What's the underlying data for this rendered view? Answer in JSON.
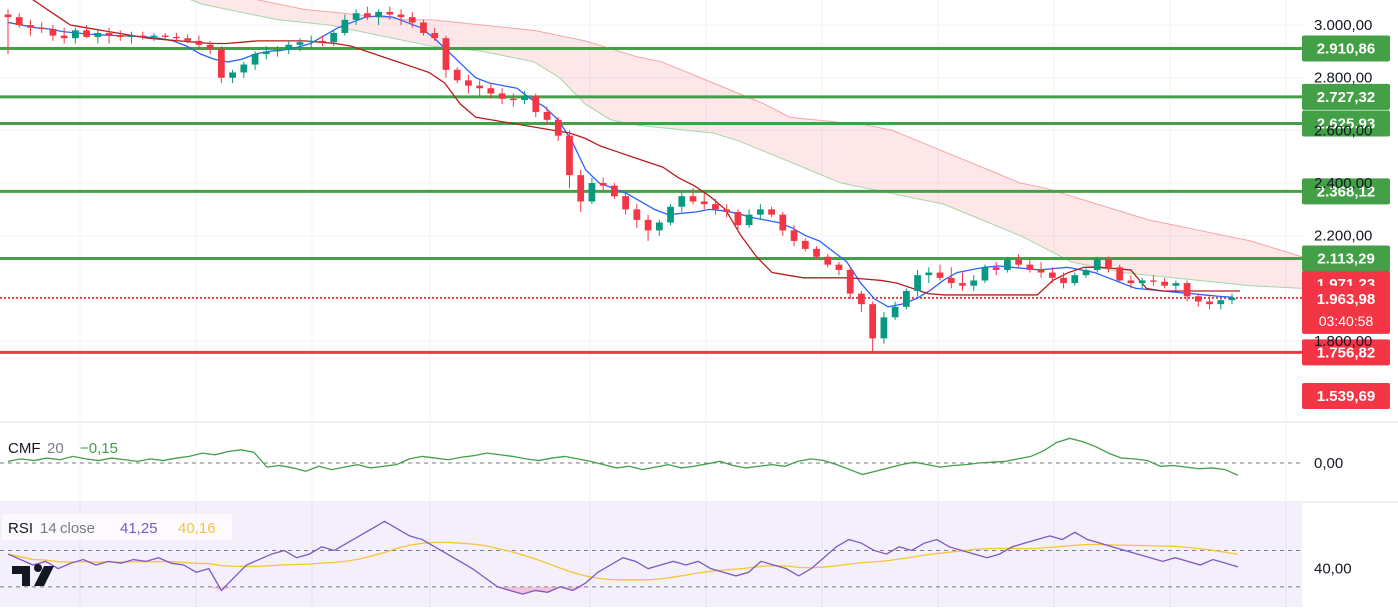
{
  "chart_data": [
    {
      "type": "candlestick",
      "panel": "price",
      "y_ticks": [
        "3.000,00",
        "2.800,00",
        "2.600,00",
        "2.400,00",
        "2.200,00",
        "1.800,00"
      ],
      "ylim": [
        1500,
        3080
      ],
      "support_levels": [
        {
          "label": "2.910,86",
          "value": 2910.86,
          "color": "#43a047"
        },
        {
          "label": "2.727,32",
          "value": 2727.32,
          "color": "#43a047"
        },
        {
          "label": "2.625,93",
          "value": 2625.93,
          "color": "#43a047"
        },
        {
          "label": "2.368,12",
          "value": 2368.12,
          "color": "#43a047"
        },
        {
          "label": "2.113,29",
          "value": 2113.29,
          "color": "#43a047"
        },
        {
          "label": "1.756,82",
          "value": 1756.82,
          "color": "#f23645"
        },
        {
          "label": "1.539,69",
          "value": 1539.69,
          "color": "#f23645"
        }
      ],
      "current_price": {
        "label": "1.963,98",
        "value": 1963.98,
        "countdown": "03:40:58",
        "color": "#f23645"
      },
      "kijun_price": {
        "label": "1.971,23",
        "value": 1971.23,
        "color": "#f23645"
      },
      "candles": [
        [
          3040,
          3060,
          2890,
          3030
        ],
        [
          3030,
          3045,
          2990,
          3000
        ],
        [
          3000,
          3020,
          2960,
          2990
        ],
        [
          2990,
          3010,
          2970,
          2985
        ],
        [
          2985,
          3000,
          2940,
          2960
        ],
        [
          2960,
          2990,
          2930,
          2950
        ],
        [
          2950,
          2990,
          2930,
          2980
        ],
        [
          2980,
          3000,
          2950,
          2955
        ],
        [
          2955,
          2980,
          2930,
          2970
        ],
        [
          2970,
          2990,
          2930,
          2960
        ],
        [
          2960,
          2980,
          2940,
          2955
        ],
        [
          2955,
          2975,
          2930,
          2960
        ],
        [
          2960,
          2975,
          2945,
          2955
        ],
        [
          2955,
          2970,
          2940,
          2960
        ],
        [
          2960,
          2970,
          2945,
          2955
        ],
        [
          2955,
          2970,
          2935,
          2950
        ],
        [
          2950,
          2965,
          2930,
          2940
        ],
        [
          2940,
          2960,
          2910,
          2925
        ],
        [
          2925,
          2940,
          2890,
          2910
        ],
        [
          2910,
          2920,
          2780,
          2800
        ],
        [
          2800,
          2830,
          2780,
          2820
        ],
        [
          2820,
          2860,
          2800,
          2850
        ],
        [
          2850,
          2900,
          2830,
          2890
        ],
        [
          2890,
          2920,
          2870,
          2900
        ],
        [
          2900,
          2920,
          2880,
          2905
        ],
        [
          2905,
          2940,
          2890,
          2925
        ],
        [
          2925,
          2950,
          2900,
          2935
        ],
        [
          2935,
          2960,
          2910,
          2940
        ],
        [
          2940,
          2960,
          2920,
          2935
        ],
        [
          2935,
          2980,
          2920,
          2970
        ],
        [
          2970,
          3040,
          2960,
          3020
        ],
        [
          3020,
          3060,
          3000,
          3045
        ],
        [
          3045,
          3070,
          3020,
          3030
        ],
        [
          3030,
          3060,
          3000,
          3050
        ],
        [
          3050,
          3070,
          3020,
          3040
        ],
        [
          3040,
          3060,
          3000,
          3030
        ],
        [
          3030,
          3050,
          2990,
          3010
        ],
        [
          3010,
          3020,
          2960,
          2970
        ],
        [
          2970,
          2990,
          2940,
          2950
        ],
        [
          2950,
          2960,
          2800,
          2830
        ],
        [
          2830,
          2840,
          2780,
          2790
        ],
        [
          2790,
          2810,
          2740,
          2770
        ],
        [
          2770,
          2790,
          2730,
          2760
        ],
        [
          2760,
          2780,
          2720,
          2740
        ],
        [
          2740,
          2760,
          2700,
          2720
        ],
        [
          2720,
          2740,
          2690,
          2715
        ],
        [
          2715,
          2750,
          2700,
          2730
        ],
        [
          2730,
          2740,
          2650,
          2670
        ],
        [
          2670,
          2690,
          2620,
          2640
        ],
        [
          2640,
          2650,
          2560,
          2580
        ],
        [
          2580,
          2600,
          2380,
          2430
        ],
        [
          2430,
          2450,
          2290,
          2330
        ],
        [
          2330,
          2420,
          2320,
          2400
        ],
        [
          2400,
          2420,
          2370,
          2390
        ],
        [
          2390,
          2400,
          2340,
          2350
        ],
        [
          2350,
          2360,
          2280,
          2300
        ],
        [
          2300,
          2320,
          2230,
          2260
        ],
        [
          2260,
          2280,
          2180,
          2220
        ],
        [
          2220,
          2260,
          2200,
          2250
        ],
        [
          2250,
          2320,
          2240,
          2310
        ],
        [
          2310,
          2370,
          2290,
          2350
        ],
        [
          2350,
          2380,
          2320,
          2330
        ],
        [
          2330,
          2360,
          2300,
          2320
        ],
        [
          2320,
          2340,
          2280,
          2300
        ],
        [
          2300,
          2320,
          2270,
          2290
        ],
        [
          2290,
          2300,
          2220,
          2240
        ],
        [
          2240,
          2300,
          2230,
          2280
        ],
        [
          2280,
          2320,
          2260,
          2300
        ],
        [
          2300,
          2310,
          2270,
          2280
        ],
        [
          2280,
          2290,
          2200,
          2220
        ],
        [
          2220,
          2240,
          2160,
          2180
        ],
        [
          2180,
          2190,
          2140,
          2150
        ],
        [
          2150,
          2160,
          2110,
          2120
        ],
        [
          2120,
          2130,
          2080,
          2090
        ],
        [
          2090,
          2100,
          2050,
          2070
        ],
        [
          2070,
          2080,
          1960,
          1980
        ],
        [
          1980,
          1990,
          1910,
          1940
        ],
        [
          1940,
          1950,
          1760,
          1810
        ],
        [
          1810,
          1910,
          1790,
          1890
        ],
        [
          1890,
          1950,
          1880,
          1930
        ],
        [
          1930,
          2000,
          1920,
          1990
        ],
        [
          1990,
          2070,
          1970,
          2050
        ],
        [
          2050,
          2080,
          2020,
          2060
        ],
        [
          2060,
          2090,
          2030,
          2040
        ],
        [
          2040,
          2080,
          2000,
          2020
        ],
        [
          2020,
          2060,
          1990,
          2010
        ],
        [
          2010,
          2050,
          1990,
          2030
        ],
        [
          2030,
          2090,
          2020,
          2080
        ],
        [
          2080,
          2100,
          2050,
          2070
        ],
        [
          2070,
          2120,
          2060,
          2110
        ],
        [
          2110,
          2130,
          2080,
          2090
        ],
        [
          2090,
          2110,
          2060,
          2070
        ],
        [
          2070,
          2100,
          2040,
          2060
        ],
        [
          2060,
          2080,
          2020,
          2040
        ],
        [
          2040,
          2060,
          2000,
          2020
        ],
        [
          2020,
          2060,
          2010,
          2050
        ],
        [
          2050,
          2080,
          2040,
          2070
        ],
        [
          2070,
          2120,
          2060,
          2110
        ],
        [
          2110,
          2120,
          2060,
          2080
        ],
        [
          2080,
          2090,
          2020,
          2030
        ],
        [
          2030,
          2050,
          2000,
          2020
        ],
        [
          2020,
          2040,
          2000,
          2030
        ],
        [
          2030,
          2050,
          2010,
          2025
        ],
        [
          2025,
          2040,
          2000,
          2010
        ],
        [
          2010,
          2030,
          1990,
          2020
        ],
        [
          2020,
          2030,
          1950,
          1970
        ],
        [
          1970,
          1980,
          1930,
          1950
        ],
        [
          1950,
          1970,
          1920,
          1940
        ],
        [
          1940,
          1960,
          1920,
          1955
        ],
        [
          1955,
          1980,
          1940,
          1964
        ]
      ],
      "tenkan": [
        3010,
        3000,
        2990,
        2985,
        2975,
        2970,
        2965,
        2962,
        2960,
        2958,
        2955,
        2950,
        2940,
        2920,
        2890,
        2870,
        2860,
        2870,
        2890,
        2900,
        2905,
        2915,
        2930,
        2960,
        2990,
        3010,
        3030,
        3035,
        3030,
        3010,
        2990,
        2950,
        2900,
        2850,
        2800,
        2780,
        2770,
        2760,
        2720,
        2690,
        2640,
        2560,
        2450,
        2400,
        2380,
        2360,
        2330,
        2300,
        2280,
        2285,
        2290,
        2300,
        2295,
        2285,
        2270,
        2260,
        2250,
        2230,
        2200,
        2180,
        2140,
        2100,
        2020,
        1960,
        1930,
        1940,
        1960,
        1990,
        2030,
        2060,
        2070,
        2080,
        2085,
        2080,
        2075,
        2070,
        2075,
        2080,
        2070,
        2060,
        2040,
        2020,
        2000,
        1995,
        1990,
        1985,
        1980,
        1975,
        1970,
        1966
      ],
      "kijun": [
        3150,
        3120,
        3080,
        3040,
        3000,
        2990,
        2980,
        2970,
        2960,
        2950,
        2945,
        2940,
        2935,
        2930,
        2930,
        2935,
        2940,
        2940,
        2940,
        2940,
        2935,
        2930,
        2920,
        2900,
        2880,
        2860,
        2840,
        2820,
        2780,
        2700,
        2650,
        2640,
        2630,
        2620,
        2610,
        2600,
        2590,
        2570,
        2540,
        2520,
        2500,
        2480,
        2460,
        2420,
        2390,
        2350,
        2300,
        2200,
        2120,
        2060,
        2050,
        2040,
        2040,
        2040,
        2040,
        2035,
        2030,
        2020,
        2000,
        1980,
        1975,
        1975,
        1975,
        1975,
        1975,
        1975,
        1975,
        2030,
        2060,
        2080,
        2080,
        2075,
        2070,
        2000,
        1990,
        1990,
        1990,
        1990,
        1990,
        1990
      ],
      "cloud_top": [
        3200,
        3180,
        3150,
        3120,
        3100,
        3080,
        3060,
        3050,
        3040,
        3030,
        3020,
        3020,
        3010,
        3000,
        2990,
        2980,
        2960,
        2940,
        2910,
        2880,
        2860,
        2820,
        2780,
        2740,
        2700,
        2650,
        2640,
        2630,
        2620,
        2600,
        2560,
        2520,
        2480,
        2440,
        2400,
        2380,
        2350,
        2320,
        2290,
        2260,
        2240,
        2220,
        2200,
        2180,
        2150,
        2120
      ],
      "cloud_bottom": [
        3150,
        3120,
        3080,
        3060,
        3040,
        3020,
        3010,
        3000,
        2980,
        2960,
        2940,
        2920,
        2910,
        2900,
        2880,
        2860,
        2800,
        2700,
        2640,
        2620,
        2610,
        2600,
        2590,
        2560,
        2520,
        2480,
        2440,
        2400,
        2380,
        2360,
        2340,
        2320,
        2280,
        2240,
        2200,
        2150,
        2100,
        2080,
        2060,
        2050,
        2040,
        2030,
        2020,
        2010,
        2005,
        2000
      ]
    },
    {
      "type": "line",
      "panel": "cmf",
      "indicator": "CMF",
      "period": "20",
      "value_label": "−0,15",
      "y_ticks": [
        "0,00"
      ],
      "ylim": [
        -0.45,
        0.45
      ],
      "values": [
        0.02,
        0.05,
        0.03,
        0.06,
        0.04,
        0.08,
        0.05,
        0.03,
        0.06,
        0.04,
        0.02,
        0.05,
        0.03,
        0.06,
        0.08,
        0.12,
        0.1,
        0.14,
        0.16,
        0.13,
        -0.05,
        -0.03,
        -0.06,
        -0.1,
        -0.04,
        -0.08,
        -0.05,
        -0.02,
        -0.06,
        -0.04,
        -0.02,
        0.05,
        0.08,
        0.06,
        0.04,
        0.07,
        0.09,
        0.12,
        0.1,
        0.08,
        0.05,
        0.03,
        0.06,
        0.08,
        0.05,
        0.02,
        -0.02,
        -0.06,
        -0.04,
        -0.08,
        -0.05,
        -0.02,
        -0.06,
        -0.04,
        -0.01,
        0.02,
        -0.03,
        -0.06,
        -0.04,
        -0.02,
        -0.04,
        0.02,
        0.05,
        0.03,
        -0.02,
        -0.08,
        -0.14,
        -0.1,
        -0.06,
        -0.02,
        0.01,
        -0.02,
        -0.05,
        -0.03,
        -0.02,
        0.0,
        0.01,
        0.02,
        0.05,
        0.08,
        0.15,
        0.25,
        0.3,
        0.26,
        0.2,
        0.12,
        0.06,
        0.05,
        0.03,
        -0.04,
        -0.03,
        -0.05,
        -0.07,
        -0.06,
        -0.08,
        -0.15
      ]
    },
    {
      "type": "line",
      "panel": "rsi",
      "indicator": "RSI",
      "period": "14",
      "source": "close",
      "value_label": "41,25",
      "ma_label": "40,16",
      "y_ticks": [
        "40,00"
      ],
      "ylim": [
        20,
        75
      ],
      "bands": [
        30,
        50
      ],
      "rsi": [
        48,
        45,
        42,
        44,
        40,
        43,
        45,
        42,
        44,
        43,
        45,
        44,
        46,
        43,
        42,
        38,
        40,
        28,
        35,
        42,
        45,
        48,
        50,
        46,
        48,
        52,
        50,
        54,
        58,
        62,
        66,
        62,
        58,
        56,
        52,
        48,
        44,
        40,
        35,
        30,
        28,
        26,
        28,
        27,
        30,
        28,
        32,
        38,
        42,
        46,
        44,
        40,
        42,
        44,
        42,
        44,
        40,
        38,
        36,
        38,
        44,
        42,
        40,
        36,
        40,
        46,
        52,
        56,
        54,
        50,
        48,
        52,
        50,
        54,
        56,
        52,
        50,
        48,
        46,
        48,
        52,
        54,
        56,
        58,
        56,
        60,
        56,
        54,
        52,
        50,
        48,
        46,
        44,
        46,
        44,
        42,
        45,
        43,
        41
      ]
    }
  ]
}
